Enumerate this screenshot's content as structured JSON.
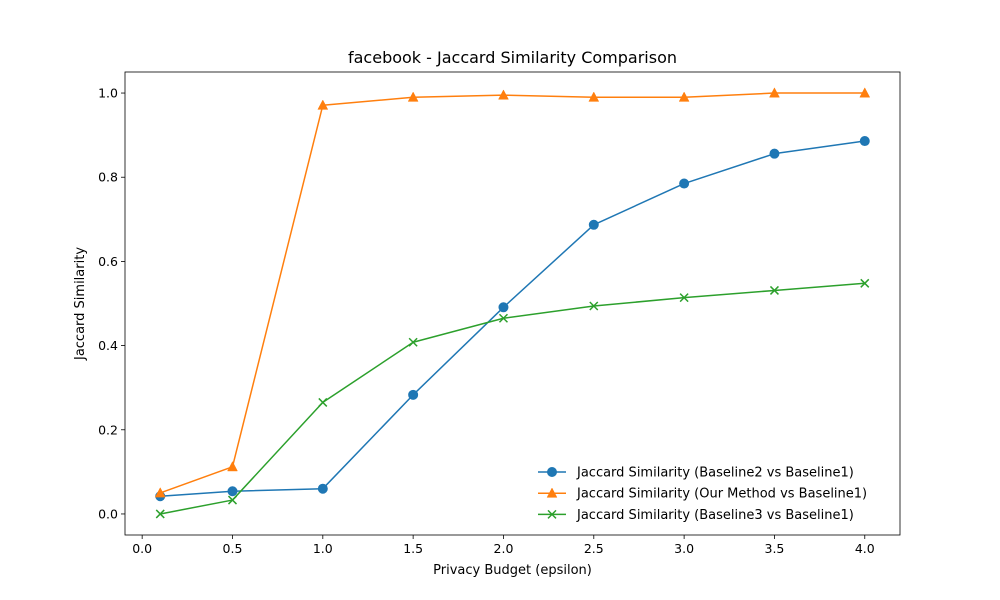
{
  "chart_data": {
    "type": "line",
    "title": "facebook - Jaccard Similarity Comparison",
    "xlabel": "Privacy Budget (epsilon)",
    "ylabel": "Jaccard Similarity",
    "x": [
      0.1,
      0.5,
      1.0,
      1.5,
      2.0,
      2.5,
      3.0,
      3.5,
      4.0
    ],
    "xlim": [
      -0.095,
      4.195
    ],
    "ylim": [
      -0.05,
      1.05
    ],
    "xticks": [
      0.0,
      0.5,
      1.0,
      1.5,
      2.0,
      2.5,
      3.0,
      3.5,
      4.0
    ],
    "xtick_labels": [
      "0.0",
      "0.5",
      "1.0",
      "1.5",
      "2.0",
      "2.5",
      "3.0",
      "3.5",
      "4.0"
    ],
    "yticks": [
      0.0,
      0.2,
      0.4,
      0.6,
      0.8,
      1.0
    ],
    "ytick_labels": [
      "0.0",
      "0.2",
      "0.4",
      "0.6",
      "0.8",
      "1.0"
    ],
    "grid": false,
    "legend_position": "bottom-right",
    "series": [
      {
        "name": "Jaccard Similarity (Baseline2 vs Baseline1)",
        "color": "#1f77b4",
        "marker": "circle",
        "values": [
          0.042,
          0.054,
          0.06,
          0.283,
          0.491,
          0.687,
          0.785,
          0.856,
          0.886
        ]
      },
      {
        "name": "Jaccard Similarity (Our Method vs Baseline1)",
        "color": "#ff7f0e",
        "marker": "triangle",
        "values": [
          0.05,
          0.112,
          0.971,
          0.99,
          0.995,
          0.99,
          0.99,
          1.0,
          1.0
        ]
      },
      {
        "name": "Jaccard Similarity (Baseline3 vs Baseline1)",
        "color": "#2ca02c",
        "marker": "x",
        "values": [
          0.0,
          0.033,
          0.265,
          0.408,
          0.465,
          0.494,
          0.514,
          0.531,
          0.548
        ]
      }
    ]
  }
}
